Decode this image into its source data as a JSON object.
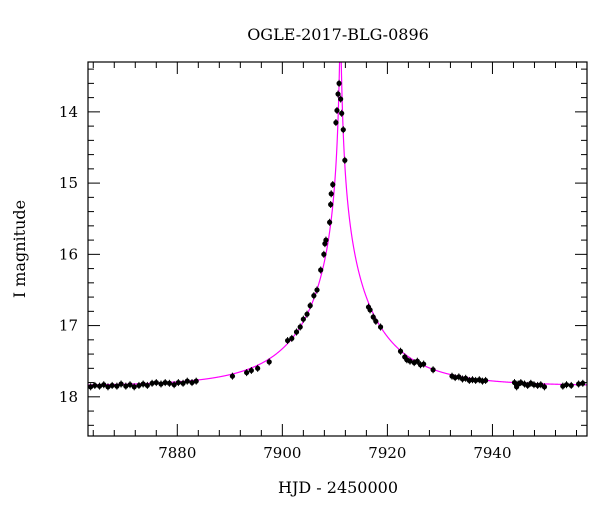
{
  "chart_data": {
    "type": "scatter",
    "title": "OGLE-2017-BLG-0896",
    "xlabel": "HJD - 2450000",
    "ylabel": "I magnitude",
    "xlim": [
      7863,
      7958
    ],
    "ylim": [
      18.55,
      13.3
    ],
    "y_inverted": true,
    "grid": false,
    "x_ticks": [
      {
        "value": 7880,
        "label": "7880"
      },
      {
        "value": 7900,
        "label": "7900"
      },
      {
        "value": 7920,
        "label": "7920"
      },
      {
        "value": 7940,
        "label": "7940"
      }
    ],
    "y_ticks": [
      {
        "value": 14,
        "label": "14"
      },
      {
        "value": 15,
        "label": "15"
      },
      {
        "value": 16,
        "label": "16"
      },
      {
        "value": 17,
        "label": "17"
      },
      {
        "value": 18,
        "label": "18"
      }
    ],
    "series": [
      {
        "kind": "points",
        "color": "#000000",
        "points": [
          [
            7863.5,
            17.86
          ],
          [
            7864.3,
            17.84
          ],
          [
            7865.2,
            17.85
          ],
          [
            7866.0,
            17.83
          ],
          [
            7866.8,
            17.86
          ],
          [
            7867.6,
            17.84
          ],
          [
            7868.5,
            17.85
          ],
          [
            7869.3,
            17.82
          ],
          [
            7870.2,
            17.85
          ],
          [
            7871.0,
            17.83
          ],
          [
            7871.8,
            17.86
          ],
          [
            7872.7,
            17.84
          ],
          [
            7873.5,
            17.82
          ],
          [
            7874.3,
            17.84
          ],
          [
            7875.2,
            17.81
          ],
          [
            7876.0,
            17.8
          ],
          [
            7876.9,
            17.82
          ],
          [
            7877.7,
            17.8
          ],
          [
            7878.5,
            17.81
          ],
          [
            7879.4,
            17.83
          ],
          [
            7880.2,
            17.8
          ],
          [
            7881.1,
            17.81
          ],
          [
            7881.9,
            17.78
          ],
          [
            7882.8,
            17.8
          ],
          [
            7883.6,
            17.78
          ],
          [
            7890.5,
            17.71
          ],
          [
            7893.2,
            17.66
          ],
          [
            7894.1,
            17.63
          ],
          [
            7895.3,
            17.6
          ],
          [
            7897.5,
            17.51
          ],
          [
            7901.0,
            17.21
          ],
          [
            7901.8,
            17.18
          ],
          [
            7902.7,
            17.09
          ],
          [
            7903.4,
            17.02
          ],
          [
            7904.0,
            16.91
          ],
          [
            7904.7,
            16.84
          ],
          [
            7905.3,
            16.72
          ],
          [
            7906.0,
            16.58
          ],
          [
            7906.6,
            16.5
          ],
          [
            7907.3,
            16.22
          ],
          [
            7907.9,
            16.0
          ],
          [
            7908.1,
            15.85
          ],
          [
            7908.3,
            15.8
          ],
          [
            7909.0,
            15.55
          ],
          [
            7909.2,
            15.3
          ],
          [
            7909.3,
            15.15
          ],
          [
            7909.6,
            15.02
          ],
          [
            7910.2,
            14.15
          ],
          [
            7910.4,
            13.98
          ],
          [
            7910.6,
            13.75
          ],
          [
            7910.8,
            13.6
          ],
          [
            7911.1,
            13.82
          ],
          [
            7911.3,
            14.02
          ],
          [
            7911.6,
            14.25
          ],
          [
            7911.9,
            14.68
          ],
          [
            7916.4,
            16.74
          ],
          [
            7916.7,
            16.78
          ],
          [
            7917.3,
            16.88
          ],
          [
            7917.8,
            16.94
          ],
          [
            7918.7,
            17.02
          ],
          [
            7922.5,
            17.36
          ],
          [
            7923.3,
            17.44
          ],
          [
            7923.7,
            17.48
          ],
          [
            7924.3,
            17.5
          ],
          [
            7925.1,
            17.52
          ],
          [
            7925.7,
            17.5
          ],
          [
            7926.3,
            17.55
          ],
          [
            7926.9,
            17.54
          ],
          [
            7928.7,
            17.62
          ],
          [
            7932.3,
            17.71
          ],
          [
            7932.9,
            17.73
          ],
          [
            7933.6,
            17.72
          ],
          [
            7934.3,
            17.75
          ],
          [
            7934.9,
            17.74
          ],
          [
            7935.6,
            17.77
          ],
          [
            7936.2,
            17.76
          ],
          [
            7936.8,
            17.77
          ],
          [
            7937.5,
            17.76
          ],
          [
            7938.1,
            17.78
          ],
          [
            7938.7,
            17.77
          ],
          [
            7944.2,
            17.8
          ],
          [
            7944.6,
            17.86
          ],
          [
            7944.9,
            17.82
          ],
          [
            7945.4,
            17.8
          ],
          [
            7946.1,
            17.82
          ],
          [
            7946.7,
            17.84
          ],
          [
            7947.3,
            17.81
          ],
          [
            7947.9,
            17.83
          ],
          [
            7948.6,
            17.84
          ],
          [
            7949.2,
            17.83
          ],
          [
            7949.9,
            17.86
          ],
          [
            7953.4,
            17.85
          ],
          [
            7954.1,
            17.83
          ],
          [
            7955.0,
            17.84
          ],
          [
            7956.4,
            17.82
          ],
          [
            7957.2,
            17.81
          ]
        ]
      },
      {
        "kind": "model",
        "color": "#ff00ff",
        "model": {
          "t0": 7911.05,
          "u0": 0.011,
          "tE": 15.0,
          "baseline_mag": 17.848
        }
      }
    ]
  }
}
